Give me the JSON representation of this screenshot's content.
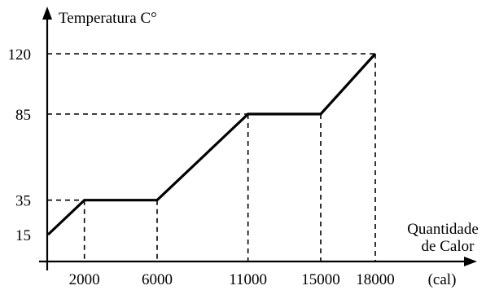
{
  "chart_data": {
    "type": "line",
    "ylabel": "Temperatura C°",
    "xlabel_lines": [
      "Quantidade",
      "de Calor"
    ],
    "x_unit": "(cal)",
    "x_ticks": [
      "2000",
      "6000",
      "11000",
      "15000",
      "18000"
    ],
    "y_ticks": [
      "15",
      "35",
      "85",
      "120"
    ],
    "series": [
      {
        "x": [
          0,
          2000,
          6000,
          11000,
          15000,
          18000
        ],
        "y": [
          15,
          35,
          35,
          85,
          85,
          120
        ]
      }
    ],
    "guides": {
      "vertical_x": [
        2000,
        6000,
        11000,
        15000,
        18000
      ],
      "horizontal_y": [
        35,
        85,
        120
      ]
    },
    "grid": false,
    "line_color": "#000000"
  }
}
